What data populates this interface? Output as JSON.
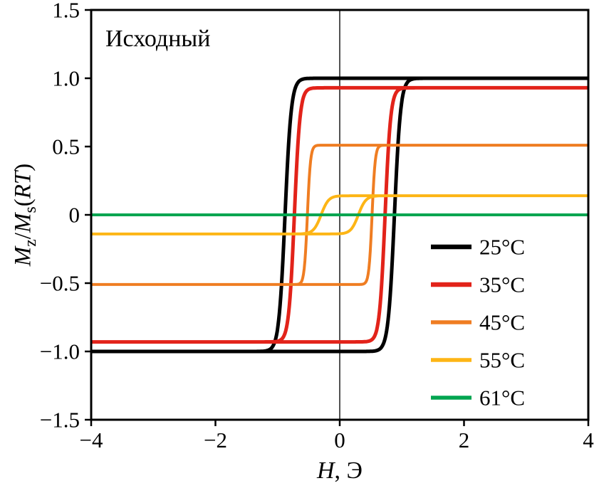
{
  "chart_data": {
    "type": "line",
    "subtype": "hysteresis-loops",
    "annotation": "Исходный",
    "xlabel": "H, Э",
    "ylabel": "Mz/Ms(RT)",
    "xlabel_rich": [
      {
        "text": "H",
        "style": "italic"
      },
      {
        "text": ", Э",
        "style": "normal"
      }
    ],
    "ylabel_rich": [
      {
        "text": "M",
        "style": "italic"
      },
      {
        "text": "z",
        "style": "sub"
      },
      {
        "text": "/",
        "style": "normal"
      },
      {
        "text": "M",
        "style": "italic"
      },
      {
        "text": "s",
        "style": "sub"
      },
      {
        "text": "(",
        "style": "normal"
      },
      {
        "text": "RT",
        "style": "italic"
      },
      {
        "text": ")",
        "style": "normal"
      }
    ],
    "xlim": [
      -4,
      4
    ],
    "ylim": [
      -1.5,
      1.5
    ],
    "xticks": {
      "values": [
        -4,
        -2,
        0,
        2,
        4
      ],
      "labels": [
        "−4",
        "−2",
        "0",
        "2",
        "4"
      ]
    },
    "yticks": {
      "values": [
        -1.5,
        -1.0,
        -0.5,
        0,
        0.5,
        1.0,
        1.5
      ],
      "labels": [
        "−1.5",
        "−1.0",
        "−0.5",
        "0",
        "0.5",
        "1.0",
        "1.5"
      ]
    },
    "grid": false,
    "zero_axis_line": true,
    "legend_position": "lower right",
    "series": [
      {
        "name": "25°C",
        "color": "#000000",
        "line_width": 5,
        "saturation": 1.0,
        "coercivity": 0.88,
        "transition_width": 0.1
      },
      {
        "name": "35°C",
        "color": "#e2231a",
        "line_width": 5,
        "saturation": 0.93,
        "coercivity": 0.73,
        "transition_width": 0.09
      },
      {
        "name": "45°C",
        "color": "#ef7d22",
        "line_width": 4,
        "saturation": 0.51,
        "coercivity": 0.52,
        "transition_width": 0.05
      },
      {
        "name": "55°C",
        "color": "#fdb515",
        "line_width": 4,
        "saturation": 0.14,
        "coercivity": 0.3,
        "transition_width": 0.12
      },
      {
        "name": "61°C",
        "color": "#00a550",
        "line_width": 4,
        "saturation": 0.0,
        "coercivity": 0.0,
        "transition_width": 0.1
      }
    ]
  }
}
